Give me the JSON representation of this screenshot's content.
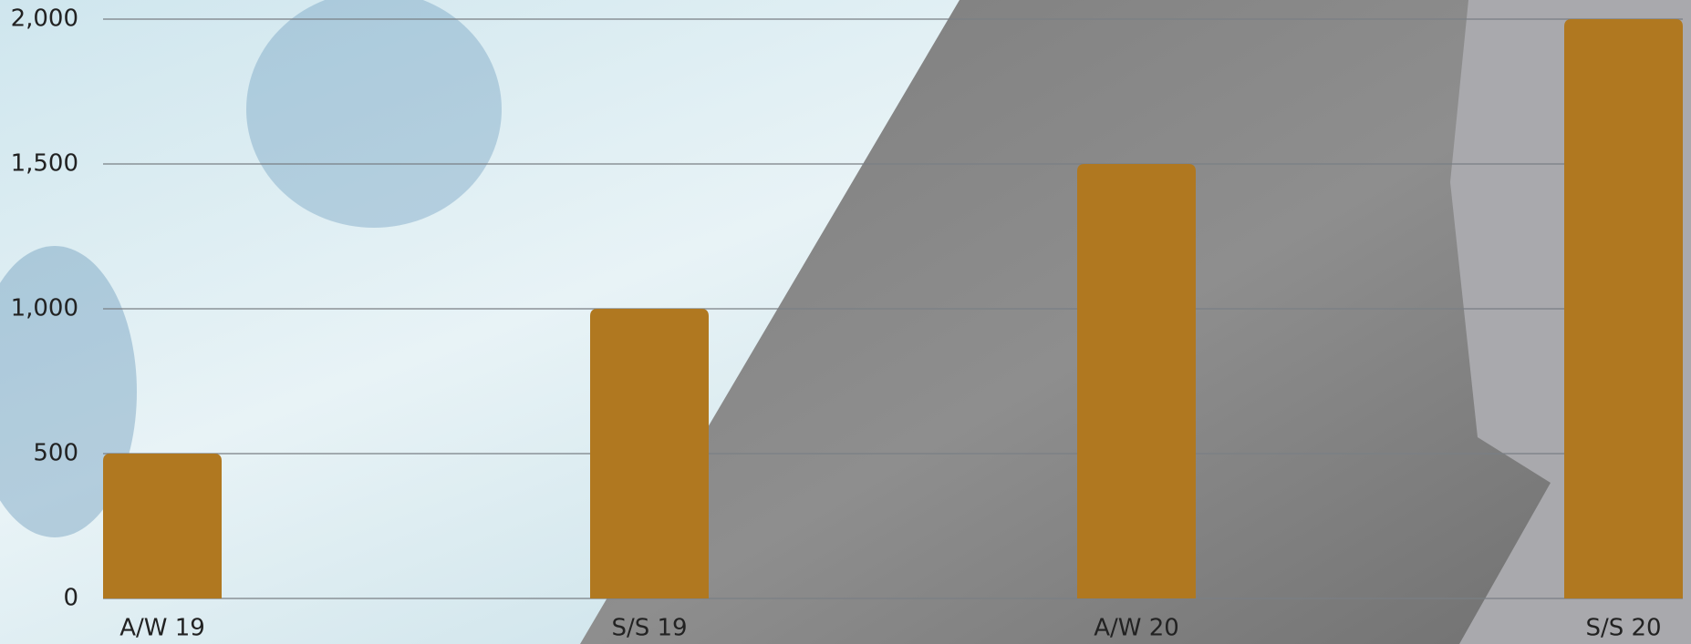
{
  "chart_data": {
    "type": "bar",
    "categories": [
      "A/W 19",
      "S/S 19",
      "A/W 20",
      "S/S 20"
    ],
    "values": [
      500,
      1000,
      1500,
      2000
    ],
    "color": "#b07820",
    "ylim": [
      0,
      2000
    ],
    "yticks": [
      0,
      500,
      {
        "value": 1000,
        "label": "1,000"
      },
      {
        "value": 1500,
        "label": "1,500"
      },
      {
        "value": 2000,
        "label": "2,000"
      }
    ],
    "grid": true
  }
}
